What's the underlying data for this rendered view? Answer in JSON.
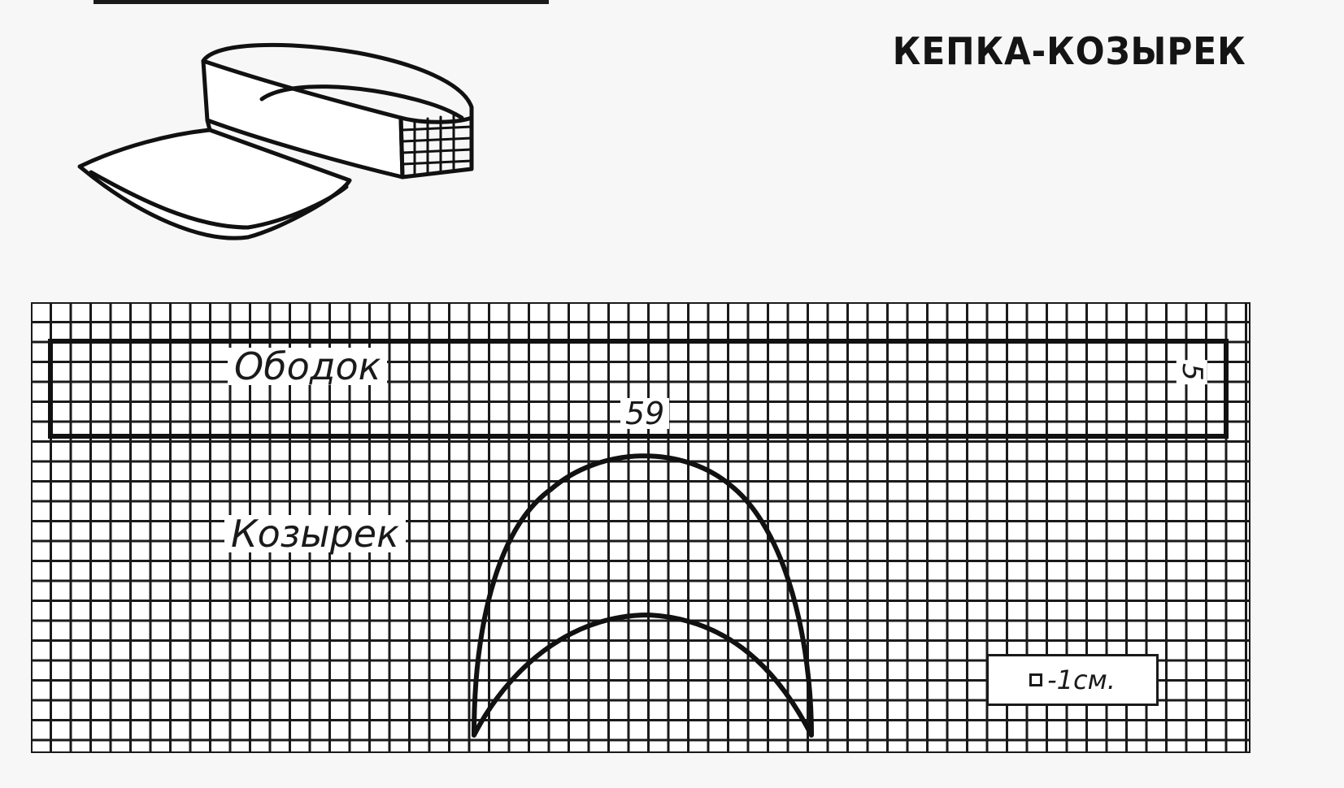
{
  "title": "КЕПКА-КОЗЫРЕК",
  "illustration": {
    "icon": "visor-cap-icon"
  },
  "pattern": {
    "grid_unit_label": "□-1см.",
    "scale_text": "-1см.",
    "pieces": {
      "band": {
        "label": "Ободок",
        "length_label": "59",
        "height_label": "5"
      },
      "visor": {
        "label": "Козырек"
      }
    }
  },
  "colors": {
    "ink": "#1a1a1a",
    "paper": "#f7f7f7"
  }
}
